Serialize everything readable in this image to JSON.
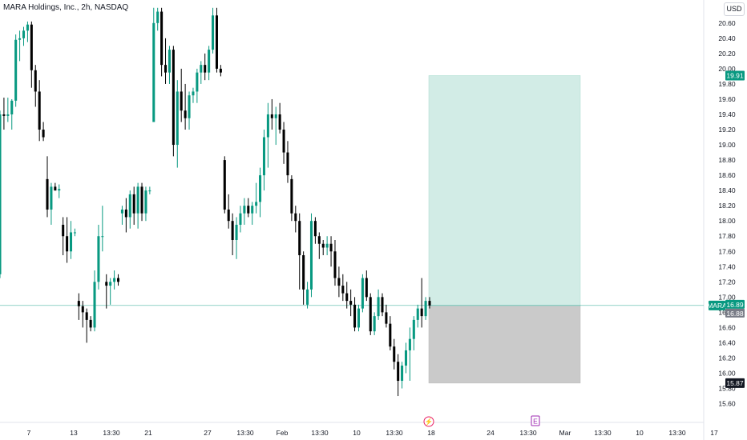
{
  "header": {
    "symbol_title": "MARA Holdings, Inc., 2h, NASDAQ",
    "currency": "USD"
  },
  "price_tags": {
    "target": "19.91",
    "symbol": "MARA",
    "last": "16.89",
    "entry": "16.88",
    "stop": "15.87"
  },
  "events": {
    "dividend_icon": "⚡",
    "earnings_icon": "E"
  },
  "colors": {
    "up": "#089981",
    "down": "#000000",
    "profit_zone": "#d2ece6",
    "loss_zone": "#cacaca",
    "tag_green": "#089981",
    "tag_grey": "#787b86",
    "tag_black": "#131722"
  },
  "chart_data": {
    "type": "candlestick",
    "title": "MARA Holdings, Inc., 2h, NASDAQ",
    "ylabel": "USD",
    "ylim": [
      15.52,
      20.8
    ],
    "y_ticks": [
      "15.60",
      "15.80",
      "16.00",
      "16.20",
      "16.40",
      "16.60",
      "16.80",
      "17.00",
      "17.20",
      "17.40",
      "17.60",
      "17.80",
      "18.00",
      "18.20",
      "18.40",
      "18.60",
      "18.80",
      "19.00",
      "19.20",
      "19.40",
      "19.60",
      "19.80",
      "20.00",
      "20.20",
      "20.40",
      "20.60"
    ],
    "x_ticks": [
      "7",
      "13",
      "13:30",
      "21",
      "27",
      "13:30",
      "Feb",
      "13:30",
      "10",
      "13:30",
      "18",
      "24",
      "13:30",
      "Mar",
      "13:30",
      "10",
      "13:30",
      "17"
    ],
    "grid": false,
    "candles": [
      {
        "o": 17.3,
        "h": 19.45,
        "l": 17.25,
        "c": 19.4
      },
      {
        "o": 19.4,
        "h": 19.62,
        "l": 19.2,
        "c": 19.38
      },
      {
        "o": 19.38,
        "h": 19.62,
        "l": 19.3,
        "c": 19.4
      },
      {
        "o": 19.4,
        "h": 19.6,
        "l": 19.2,
        "c": 19.58
      },
      {
        "o": 19.58,
        "h": 20.45,
        "l": 19.5,
        "c": 20.38
      },
      {
        "o": 20.38,
        "h": 20.5,
        "l": 20.1,
        "c": 20.4
      },
      {
        "o": 20.4,
        "h": 20.55,
        "l": 20.3,
        "c": 20.5
      },
      {
        "o": 20.5,
        "h": 20.62,
        "l": 20.35,
        "c": 20.58
      },
      {
        "o": 20.58,
        "h": 20.62,
        "l": 19.75,
        "c": 19.98
      },
      {
        "o": 19.98,
        "h": 20.05,
        "l": 19.5,
        "c": 19.7
      },
      {
        "o": 19.7,
        "h": 19.85,
        "l": 19.05,
        "c": 19.2
      },
      {
        "o": 19.2,
        "h": 19.3,
        "l": 19.05,
        "c": 19.1
      },
      {
        "o": 18.55,
        "h": 18.85,
        "l": 18.05,
        "c": 18.15
      },
      {
        "o": 18.15,
        "h": 18.5,
        "l": 17.95,
        "c": 18.45
      },
      {
        "o": 18.45,
        "h": 18.5,
        "l": 18.4,
        "c": 18.4
      },
      {
        "o": 18.4,
        "h": 18.48,
        "l": 18.3,
        "c": 18.42
      },
      {
        "o": 17.95,
        "h": 18.05,
        "l": 17.55,
        "c": 17.8
      },
      {
        "o": 17.8,
        "h": 18.05,
        "l": 17.45,
        "c": 17.6
      },
      {
        "o": 17.6,
        "h": 18.0,
        "l": 17.5,
        "c": 17.85
      },
      {
        "o": 17.85,
        "h": 17.9,
        "l": 17.8,
        "c": 17.85
      },
      {
        "o": 16.95,
        "h": 17.05,
        "l": 16.7,
        "c": 16.88
      },
      {
        "o": 16.88,
        "h": 16.95,
        "l": 16.6,
        "c": 16.8
      },
      {
        "o": 16.8,
        "h": 16.85,
        "l": 16.4,
        "c": 16.7
      },
      {
        "o": 16.7,
        "h": 16.75,
        "l": 16.55,
        "c": 16.6
      },
      {
        "o": 16.6,
        "h": 17.35,
        "l": 16.55,
        "c": 17.2
      },
      {
        "o": 17.2,
        "h": 17.95,
        "l": 17.1,
        "c": 17.8
      },
      {
        "o": 17.8,
        "h": 18.2,
        "l": 17.6,
        "c": 17.8
      },
      {
        "o": 17.2,
        "h": 17.3,
        "l": 16.85,
        "c": 17.15
      },
      {
        "o": 17.15,
        "h": 17.25,
        "l": 16.9,
        "c": 17.2
      },
      {
        "o": 17.2,
        "h": 17.35,
        "l": 17.1,
        "c": 17.25
      },
      {
        "o": 17.25,
        "h": 17.3,
        "l": 17.15,
        "c": 17.2
      },
      {
        "o": 18.1,
        "h": 18.2,
        "l": 17.95,
        "c": 18.15
      },
      {
        "o": 18.15,
        "h": 18.3,
        "l": 17.85,
        "c": 18.05
      },
      {
        "o": 18.05,
        "h": 18.4,
        "l": 17.9,
        "c": 18.35
      },
      {
        "o": 18.35,
        "h": 18.45,
        "l": 17.95,
        "c": 18.1
      },
      {
        "o": 18.1,
        "h": 18.5,
        "l": 17.9,
        "c": 18.45
      },
      {
        "o": 18.45,
        "h": 18.5,
        "l": 18.0,
        "c": 18.1
      },
      {
        "o": 18.1,
        "h": 18.45,
        "l": 18.0,
        "c": 18.4
      },
      {
        "o": 18.4,
        "h": 18.45,
        "l": 18.35,
        "c": 18.4
      },
      {
        "o": 19.3,
        "h": 20.8,
        "l": 19.3,
        "c": 20.6
      },
      {
        "o": 20.6,
        "h": 20.8,
        "l": 20.5,
        "c": 20.75
      },
      {
        "o": 20.75,
        "h": 20.8,
        "l": 19.9,
        "c": 20.05
      },
      {
        "o": 20.05,
        "h": 20.4,
        "l": 19.8,
        "c": 19.95
      },
      {
        "o": 19.95,
        "h": 20.3,
        "l": 19.8,
        "c": 20.25
      },
      {
        "o": 20.25,
        "h": 20.3,
        "l": 18.85,
        "c": 19.0
      },
      {
        "o": 19.0,
        "h": 19.85,
        "l": 18.7,
        "c": 19.7
      },
      {
        "o": 19.7,
        "h": 20.0,
        "l": 19.3,
        "c": 19.45
      },
      {
        "o": 19.45,
        "h": 19.8,
        "l": 19.2,
        "c": 19.35
      },
      {
        "o": 19.35,
        "h": 19.7,
        "l": 19.2,
        "c": 19.65
      },
      {
        "o": 19.65,
        "h": 19.75,
        "l": 19.55,
        "c": 19.7
      },
      {
        "o": 19.7,
        "h": 20.0,
        "l": 19.55,
        "c": 19.95
      },
      {
        "o": 19.95,
        "h": 20.1,
        "l": 19.8,
        "c": 20.05
      },
      {
        "o": 20.05,
        "h": 20.2,
        "l": 19.85,
        "c": 19.95
      },
      {
        "o": 19.95,
        "h": 20.3,
        "l": 19.85,
        "c": 20.25
      },
      {
        "o": 20.25,
        "h": 20.8,
        "l": 20.2,
        "c": 20.7
      },
      {
        "o": 20.7,
        "h": 20.8,
        "l": 19.95,
        "c": 20.0
      },
      {
        "o": 20.0,
        "h": 20.05,
        "l": 19.9,
        "c": 19.95
      },
      {
        "o": 18.8,
        "h": 18.85,
        "l": 18.1,
        "c": 18.15
      },
      {
        "o": 18.15,
        "h": 18.35,
        "l": 17.9,
        "c": 18.0
      },
      {
        "o": 18.0,
        "h": 18.1,
        "l": 17.55,
        "c": 17.75
      },
      {
        "o": 17.75,
        "h": 18.05,
        "l": 17.5,
        "c": 17.95
      },
      {
        "o": 17.95,
        "h": 18.2,
        "l": 17.85,
        "c": 18.1
      },
      {
        "o": 18.1,
        "h": 18.3,
        "l": 17.95,
        "c": 18.2
      },
      {
        "o": 18.2,
        "h": 18.3,
        "l": 18.05,
        "c": 18.1
      },
      {
        "o": 18.1,
        "h": 18.25,
        "l": 17.95,
        "c": 18.2
      },
      {
        "o": 18.2,
        "h": 18.5,
        "l": 18.1,
        "c": 18.25
      },
      {
        "o": 18.25,
        "h": 18.7,
        "l": 18.05,
        "c": 18.6
      },
      {
        "o": 18.6,
        "h": 19.2,
        "l": 18.4,
        "c": 19.1
      },
      {
        "o": 19.1,
        "h": 19.55,
        "l": 18.7,
        "c": 19.4
      },
      {
        "o": 19.4,
        "h": 19.6,
        "l": 19.2,
        "c": 19.35
      },
      {
        "o": 19.35,
        "h": 19.5,
        "l": 19.0,
        "c": 19.4
      },
      {
        "o": 19.4,
        "h": 19.55,
        "l": 19.15,
        "c": 19.2
      },
      {
        "o": 19.2,
        "h": 19.3,
        "l": 18.75,
        "c": 18.9
      },
      {
        "o": 18.9,
        "h": 19.05,
        "l": 18.5,
        "c": 18.6
      },
      {
        "o": 18.55,
        "h": 18.6,
        "l": 18.0,
        "c": 18.1
      },
      {
        "o": 18.1,
        "h": 18.2,
        "l": 17.85,
        "c": 18.0
      },
      {
        "o": 18.0,
        "h": 18.1,
        "l": 17.1,
        "c": 17.55
      },
      {
        "o": 17.55,
        "h": 17.6,
        "l": 16.9,
        "c": 17.1
      },
      {
        "o": 16.9,
        "h": 17.2,
        "l": 16.85,
        "c": 17.1
      },
      {
        "o": 17.1,
        "h": 18.1,
        "l": 17.0,
        "c": 18.0
      },
      {
        "o": 18.0,
        "h": 18.05,
        "l": 17.7,
        "c": 17.8
      },
      {
        "o": 17.8,
        "h": 17.85,
        "l": 17.5,
        "c": 17.7
      },
      {
        "o": 17.7,
        "h": 17.75,
        "l": 17.55,
        "c": 17.65
      },
      {
        "o": 17.65,
        "h": 17.8,
        "l": 17.55,
        "c": 17.7
      },
      {
        "o": 17.7,
        "h": 17.8,
        "l": 17.4,
        "c": 17.6
      },
      {
        "o": 17.6,
        "h": 17.75,
        "l": 17.15,
        "c": 17.25
      },
      {
        "o": 17.25,
        "h": 17.4,
        "l": 17.0,
        "c": 17.15
      },
      {
        "o": 17.15,
        "h": 17.3,
        "l": 16.95,
        "c": 17.05
      },
      {
        "o": 17.05,
        "h": 17.2,
        "l": 16.85,
        "c": 16.95
      },
      {
        "o": 16.95,
        "h": 17.1,
        "l": 16.75,
        "c": 16.9
      },
      {
        "o": 16.9,
        "h": 17.0,
        "l": 16.55,
        "c": 16.6
      },
      {
        "o": 16.6,
        "h": 16.9,
        "l": 16.55,
        "c": 16.85
      },
      {
        "o": 16.85,
        "h": 17.3,
        "l": 16.8,
        "c": 17.25
      },
      {
        "o": 17.25,
        "h": 17.35,
        "l": 16.95,
        "c": 17.0
      },
      {
        "o": 17.0,
        "h": 17.05,
        "l": 16.5,
        "c": 16.55
      },
      {
        "o": 16.55,
        "h": 16.8,
        "l": 16.5,
        "c": 16.75
      },
      {
        "o": 16.75,
        "h": 17.1,
        "l": 16.7,
        "c": 17.0
      },
      {
        "o": 17.0,
        "h": 17.05,
        "l": 16.75,
        "c": 16.8
      },
      {
        "o": 16.8,
        "h": 16.9,
        "l": 16.6,
        "c": 16.65
      },
      {
        "o": 16.65,
        "h": 16.75,
        "l": 16.3,
        "c": 16.35
      },
      {
        "o": 16.35,
        "h": 16.45,
        "l": 16.05,
        "c": 16.15
      },
      {
        "o": 16.15,
        "h": 16.25,
        "l": 15.7,
        "c": 15.9
      },
      {
        "o": 15.9,
        "h": 16.15,
        "l": 15.8,
        "c": 16.1
      },
      {
        "o": 16.1,
        "h": 16.4,
        "l": 16.0,
        "c": 16.3
      },
      {
        "o": 16.3,
        "h": 16.6,
        "l": 15.9,
        "c": 16.45
      },
      {
        "o": 16.45,
        "h": 16.75,
        "l": 16.3,
        "c": 16.7
      },
      {
        "o": 16.7,
        "h": 16.9,
        "l": 16.6,
        "c": 16.85
      },
      {
        "o": 16.85,
        "h": 17.25,
        "l": 16.6,
        "c": 16.75
      },
      {
        "o": 16.75,
        "h": 17.0,
        "l": 16.7,
        "c": 16.95
      },
      {
        "o": 16.95,
        "h": 17.0,
        "l": 16.85,
        "c": 16.89
      }
    ],
    "candle_x_range": [
      0,
      536
    ],
    "position_tool": {
      "entry": 16.88,
      "target": 19.91,
      "stop": 15.87
    },
    "last_price": 16.89
  }
}
